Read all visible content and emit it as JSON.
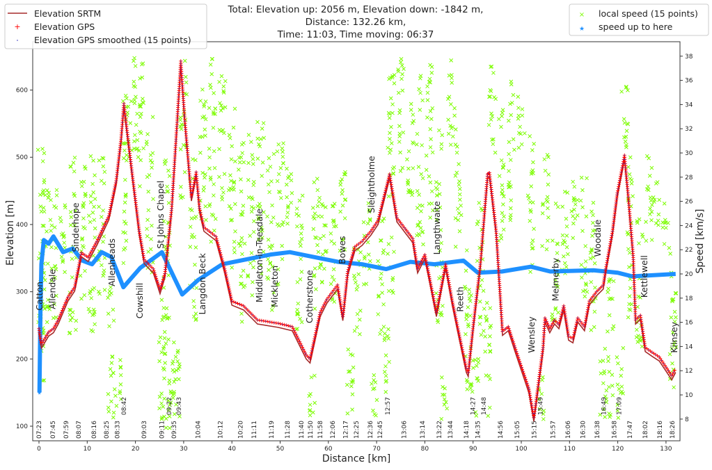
{
  "chart_data": {
    "type": "line+scatter",
    "title_lines": [
      "Total: Elevation up: 2056 m, Elevation down: -1842 m,",
      "Distance: 132.26 km,",
      "Time: 11:03, Time moving: 06:37"
    ],
    "xlabel": "Distance [km]",
    "ylabel_left": "Elevation [m]",
    "ylabel_right": "Speed [km/s]",
    "xlim": [
      -1.3,
      133
    ],
    "ylim_left": [
      79,
      672
    ],
    "ylim_right": [
      6.7,
      39.3
    ],
    "xticks": [
      0,
      10,
      20,
      30,
      40,
      50,
      60,
      70,
      80,
      90,
      100,
      110,
      120,
      130
    ],
    "yticks_left": [
      100,
      200,
      300,
      400,
      500,
      600
    ],
    "yticks_right": [
      8,
      10,
      12,
      14,
      16,
      18,
      20,
      22,
      24,
      26,
      28,
      30,
      32,
      34,
      36,
      38
    ],
    "grid": false,
    "legend_left": {
      "placement": "top-left",
      "entries": [
        "Elevation SRTM",
        "Elevation GPS",
        "Elevation GPS smoothed (15 points)"
      ]
    },
    "legend_right": {
      "placement": "top-right",
      "entries": [
        "local speed (15 points)",
        "speed up to here"
      ]
    },
    "colors": {
      "srtm": "#a52a2a",
      "gps": "#ff0000",
      "smoothed": "#3030c0",
      "local_speed": "#7cfc00",
      "speed_up_to_here": "#1e90ff"
    },
    "elevation": [
      [
        0,
        245
      ],
      [
        0.5,
        222
      ],
      [
        2,
        240
      ],
      [
        3,
        245
      ],
      [
        4,
        258
      ],
      [
        6,
        292
      ],
      [
        7.4,
        307
      ],
      [
        8.8,
        358
      ],
      [
        10.2,
        351
      ],
      [
        12,
        375
      ],
      [
        14.5,
        413
      ],
      [
        16,
        465
      ],
      [
        17,
        527
      ],
      [
        17.6,
        580
      ],
      [
        19.3,
        478
      ],
      [
        20.8,
        390
      ],
      [
        21.8,
        348
      ],
      [
        23.7,
        334
      ],
      [
        25.1,
        303
      ],
      [
        26.1,
        327
      ],
      [
        27.5,
        424
      ],
      [
        28.4,
        527
      ],
      [
        29.4,
        643
      ],
      [
        30.2,
        560
      ],
      [
        31.6,
        441
      ],
      [
        32.6,
        478
      ],
      [
        33.3,
        424
      ],
      [
        34.2,
        396
      ],
      [
        36.7,
        382
      ],
      [
        38.5,
        334
      ],
      [
        40,
        286
      ],
      [
        42.4,
        279
      ],
      [
        45.3,
        258
      ],
      [
        49.6,
        253
      ],
      [
        52.5,
        248
      ],
      [
        55.4,
        206
      ],
      [
        56.2,
        200
      ],
      [
        58.3,
        269
      ],
      [
        59.7,
        289
      ],
      [
        61.9,
        310
      ],
      [
        63,
        263
      ],
      [
        64,
        330
      ],
      [
        65.5,
        367
      ],
      [
        67,
        375
      ],
      [
        68.8,
        390
      ],
      [
        70.3,
        406
      ],
      [
        72.7,
        475
      ],
      [
        74.2,
        410
      ],
      [
        76,
        393
      ],
      [
        77.5,
        379
      ],
      [
        78.5,
        334
      ],
      [
        80,
        355
      ],
      [
        81,
        320
      ],
      [
        82.4,
        269
      ],
      [
        84.3,
        341
      ],
      [
        85.7,
        286
      ],
      [
        86.7,
        251
      ],
      [
        88.6,
        186
      ],
      [
        89,
        180
      ],
      [
        90,
        248
      ],
      [
        91.5,
        341
      ],
      [
        93,
        475
      ],
      [
        93.4,
        477
      ],
      [
        94.8,
        390
      ],
      [
        96.1,
        241
      ],
      [
        97.3,
        248
      ],
      [
        98.7,
        217
      ],
      [
        101.6,
        155
      ],
      [
        102.6,
        113
      ],
      [
        103,
        134
      ],
      [
        104.5,
        217
      ],
      [
        104.9,
        261
      ],
      [
        105.9,
        245
      ],
      [
        106.9,
        258
      ],
      [
        107.8,
        251
      ],
      [
        108.8,
        279
      ],
      [
        109.8,
        234
      ],
      [
        110.7,
        230
      ],
      [
        111.7,
        261
      ],
      [
        113.1,
        248
      ],
      [
        114.1,
        286
      ],
      [
        115.6,
        300
      ],
      [
        117,
        310
      ],
      [
        117.5,
        334
      ],
      [
        118.9,
        390
      ],
      [
        119.9,
        447
      ],
      [
        121.4,
        503
      ],
      [
        122.2,
        441
      ],
      [
        123.2,
        354
      ],
      [
        123.7,
        258
      ],
      [
        124.7,
        265
      ],
      [
        125.7,
        217
      ],
      [
        127.1,
        210
      ],
      [
        128.6,
        203
      ],
      [
        131.2,
        175
      ],
      [
        132,
        186
      ]
    ],
    "speed_up_to_here": [
      [
        0.1,
        10.2
      ],
      [
        0.3,
        16.8
      ],
      [
        0.5,
        20.8
      ],
      [
        1,
        22.8
      ],
      [
        2,
        22.5
      ],
      [
        3,
        23.1
      ],
      [
        5,
        21.8
      ],
      [
        7,
        22.1
      ],
      [
        9,
        21.1
      ],
      [
        11,
        20.8
      ],
      [
        13,
        21.8
      ],
      [
        15,
        21.4
      ],
      [
        17.5,
        18.9
      ],
      [
        21,
        20.5
      ],
      [
        25.5,
        21.8
      ],
      [
        29.7,
        18.3
      ],
      [
        33,
        19.5
      ],
      [
        38,
        20.8
      ],
      [
        43,
        21.2
      ],
      [
        48,
        21.6
      ],
      [
        52,
        21.8
      ],
      [
        57,
        21.4
      ],
      [
        62,
        21
      ],
      [
        67,
        20.8
      ],
      [
        72,
        20.4
      ],
      [
        77,
        21
      ],
      [
        82,
        20.8
      ],
      [
        88,
        21.1
      ],
      [
        91,
        20.1
      ],
      [
        96,
        20.2
      ],
      [
        102,
        20.6
      ],
      [
        106,
        20.2
      ],
      [
        115,
        20.3
      ],
      [
        120,
        20.1
      ],
      [
        123,
        19.8
      ],
      [
        132,
        20
      ]
    ],
    "local_speed_streaks": [
      [
        0.5,
        10,
        32
      ],
      [
        1.5,
        14,
        28
      ],
      [
        3,
        16,
        27
      ],
      [
        5,
        20,
        26
      ],
      [
        7,
        15,
        30
      ],
      [
        9,
        17,
        29
      ],
      [
        11,
        15,
        31
      ],
      [
        13,
        18,
        30
      ],
      [
        15,
        8,
        20
      ],
      [
        16.5,
        9,
        13
      ],
      [
        18,
        20,
        37
      ],
      [
        19.5,
        30,
        38
      ],
      [
        21,
        27,
        38
      ],
      [
        23,
        20,
        33
      ],
      [
        25.5,
        8,
        18
      ],
      [
        26.5,
        7,
        30
      ],
      [
        27.5,
        8,
        15
      ],
      [
        28.5,
        7,
        15
      ],
      [
        30,
        26,
        38
      ],
      [
        32,
        16,
        30
      ],
      [
        34,
        24,
        36
      ],
      [
        36,
        22,
        38
      ],
      [
        38,
        26,
        37
      ],
      [
        40,
        20,
        34
      ],
      [
        42,
        16,
        31
      ],
      [
        44,
        18,
        32
      ],
      [
        46,
        20,
        33
      ],
      [
        48,
        17,
        30
      ],
      [
        50,
        19,
        31
      ],
      [
        52,
        24,
        30
      ],
      [
        54,
        14,
        27
      ],
      [
        56.5,
        8,
        12
      ],
      [
        57.5,
        17,
        28
      ],
      [
        59,
        19,
        27
      ],
      [
        61,
        16,
        26
      ],
      [
        63,
        20,
        29
      ],
      [
        64.5,
        8,
        14
      ],
      [
        66,
        15,
        23
      ],
      [
        68,
        18,
        26
      ],
      [
        69.5,
        8,
        12
      ],
      [
        71,
        15,
        25
      ],
      [
        72,
        10,
        16
      ],
      [
        73,
        18,
        38
      ],
      [
        75,
        28,
        38
      ],
      [
        77,
        26,
        36
      ],
      [
        79,
        22,
        37
      ],
      [
        81,
        24,
        38
      ],
      [
        83,
        14,
        32
      ],
      [
        84,
        8,
        12
      ],
      [
        85.5,
        30,
        38
      ],
      [
        87,
        22,
        32
      ],
      [
        89,
        8,
        22
      ],
      [
        90.5,
        8,
        13
      ],
      [
        91.5,
        14,
        26
      ],
      [
        93,
        8,
        18
      ],
      [
        94,
        30,
        38
      ],
      [
        96,
        22,
        34
      ],
      [
        98,
        24,
        36
      ],
      [
        100,
        30,
        35
      ],
      [
        102,
        20,
        32
      ],
      [
        104,
        8,
        12
      ],
      [
        105,
        22,
        30
      ],
      [
        107,
        16,
        26
      ],
      [
        109,
        20,
        28
      ],
      [
        111,
        22,
        28
      ],
      [
        113,
        18,
        28
      ],
      [
        115,
        15,
        26
      ],
      [
        117,
        8,
        14
      ],
      [
        118.5,
        8,
        20
      ],
      [
        120.5,
        8,
        14
      ],
      [
        121.5,
        30,
        36
      ],
      [
        122.5,
        16,
        30
      ],
      [
        124.5,
        14,
        26
      ],
      [
        126.5,
        22,
        30
      ],
      [
        128,
        24,
        28
      ],
      [
        130,
        22,
        26
      ],
      [
        131.5,
        9,
        22
      ]
    ],
    "towns": [
      {
        "name": "Catton",
        "km": 0,
        "elev": 272
      },
      {
        "name": "Allendale",
        "km": 2.7,
        "elev": 274
      },
      {
        "name": "Sinderhope",
        "km": 7.5,
        "elev": 359
      },
      {
        "name": "Allenheads",
        "km": 15,
        "elev": 308
      },
      {
        "name": "Cowshill",
        "km": 20.8,
        "elev": 260
      },
      {
        "name": "St Johns Chapel",
        "km": 25.1,
        "elev": 364
      },
      {
        "name": "Langdon Beck",
        "km": 33.8,
        "elev": 266
      },
      {
        "name": "Middleton-in-Teesdale",
        "km": 45.6,
        "elev": 284
      },
      {
        "name": "Mickleton",
        "km": 48.8,
        "elev": 277
      },
      {
        "name": "Cotherstone",
        "km": 56,
        "elev": 253
      },
      {
        "name": "Bowes",
        "km": 62.8,
        "elev": 341
      },
      {
        "name": "Sleightholme",
        "km": 68.8,
        "elev": 417
      },
      {
        "name": "Langthwaite",
        "km": 82.4,
        "elev": 355
      },
      {
        "name": "Reeth",
        "km": 87.2,
        "elev": 270
      },
      {
        "name": "Wensley",
        "km": 102,
        "elev": 209
      },
      {
        "name": "Melmerby",
        "km": 107,
        "elev": 286
      },
      {
        "name": "Woodale",
        "km": 115.7,
        "elev": 352
      },
      {
        "name": "Kettlewell",
        "km": 125.4,
        "elev": 291
      },
      {
        "name": "Kilnsey",
        "km": 131.6,
        "elev": 209
      }
    ],
    "time_markers": [
      {
        "time": "07:23",
        "km": 0
      },
      {
        "time": "07:45",
        "km": 2.9
      },
      {
        "time": "07:59",
        "km": 5.6
      },
      {
        "time": "08:07",
        "km": 8.2
      },
      {
        "time": "08:16",
        "km": 11.4
      },
      {
        "time": "08:25",
        "km": 14.0
      },
      {
        "time": "08:33",
        "km": 16.2
      },
      {
        "time": "08:42",
        "km": 17.6
      },
      {
        "time": "09:03",
        "km": 21.8
      },
      {
        "time": "09:11",
        "km": 25.5
      },
      {
        "time": "09:22",
        "km": 27
      },
      {
        "time": "09:35",
        "km": 28
      },
      {
        "time": "09:43",
        "km": 29
      },
      {
        "time": "10:04",
        "km": 33
      },
      {
        "time": "10:12",
        "km": 37.6
      },
      {
        "time": "10:20",
        "km": 41.8
      },
      {
        "time": "11:11",
        "km": 44.6
      },
      {
        "time": "11:19",
        "km": 48.2
      },
      {
        "time": "11:28",
        "km": 51.5
      },
      {
        "time": "11:40",
        "km": 54.4
      },
      {
        "time": "11:50",
        "km": 56.3
      },
      {
        "time": "11:58",
        "km": 58.3
      },
      {
        "time": "12:06",
        "km": 60.9
      },
      {
        "time": "12:17",
        "km": 63.6
      },
      {
        "time": "12:25",
        "km": 65.8
      },
      {
        "time": "12:36",
        "km": 68.7
      },
      {
        "time": "12:45",
        "km": 70.7
      },
      {
        "time": "12:57",
        "km": 72.3
      },
      {
        "time": "13:06",
        "km": 75.7
      },
      {
        "time": "13:14",
        "km": 79.5
      },
      {
        "time": "13:22",
        "km": 83
      },
      {
        "time": "13:44",
        "km": 85.3
      },
      {
        "time": "14:18",
        "km": 88.6
      },
      {
        "time": "14:27",
        "km": 90
      },
      {
        "time": "14:35",
        "km": 91
      },
      {
        "time": "14:48",
        "km": 92.2
      },
      {
        "time": "14:56",
        "km": 95.7
      },
      {
        "time": "15:05",
        "km": 99.1
      },
      {
        "time": "15:15",
        "km": 102.7
      },
      {
        "time": "15:49",
        "km": 104
      },
      {
        "time": "15:57",
        "km": 106.6
      },
      {
        "time": "16:06",
        "km": 109.7
      },
      {
        "time": "16:30",
        "km": 112.8
      },
      {
        "time": "16:38",
        "km": 115.7
      },
      {
        "time": "16:49",
        "km": 117.1
      },
      {
        "time": "16:58",
        "km": 119.3
      },
      {
        "time": "17:09",
        "km": 120.3
      },
      {
        "time": "17:47",
        "km": 122.5
      },
      {
        "time": "18:02",
        "km": 125.7
      },
      {
        "time": "18:16",
        "km": 128.7
      },
      {
        "time": "18:26",
        "km": 131.3
      }
    ]
  }
}
